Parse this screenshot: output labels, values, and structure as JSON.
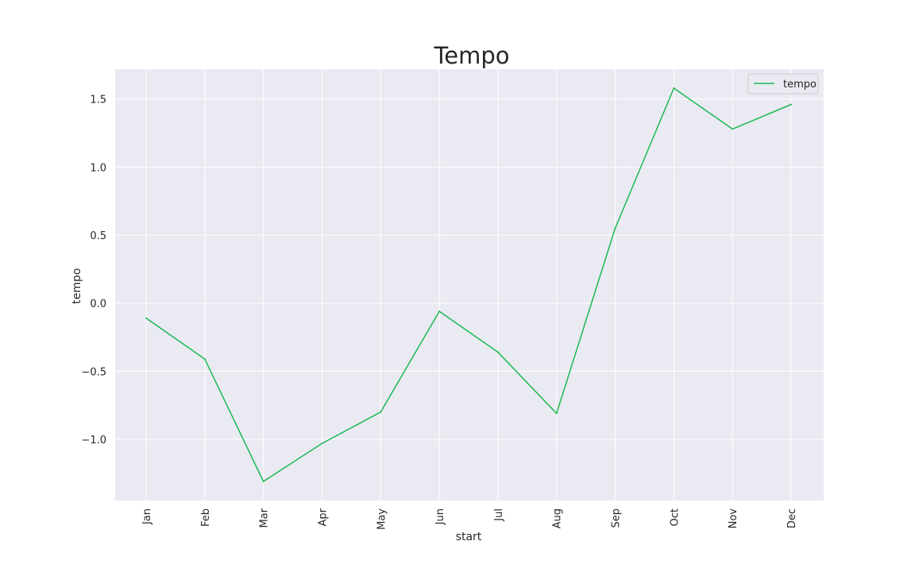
{
  "chart_data": {
    "type": "line",
    "title": "Tempo",
    "xlabel": "start",
    "ylabel": "tempo",
    "categories": [
      "Jan",
      "Feb",
      "Mar",
      "Apr",
      "May",
      "Jun",
      "Jul",
      "Aug",
      "Sep",
      "Oct",
      "Nov",
      "Dec"
    ],
    "series": [
      {
        "name": "tempo",
        "color": "#1db954",
        "values": [
          -0.11,
          -0.41,
          -1.31,
          -1.03,
          -0.8,
          -0.06,
          -0.36,
          -0.81,
          0.55,
          1.58,
          1.28,
          1.46
        ]
      }
    ],
    "yticks": [
      -1.0,
      -0.5,
      0.0,
      0.5,
      1.0,
      1.5
    ],
    "ytick_labels": [
      "−1.0",
      "−0.5",
      "0.0",
      "0.5",
      "1.0",
      "1.5"
    ],
    "ylim": [
      -1.45,
      1.72
    ],
    "grid": true,
    "legend_position": "top-right",
    "background_color": "#eaeaf2",
    "grid_color": "#ffffff"
  }
}
